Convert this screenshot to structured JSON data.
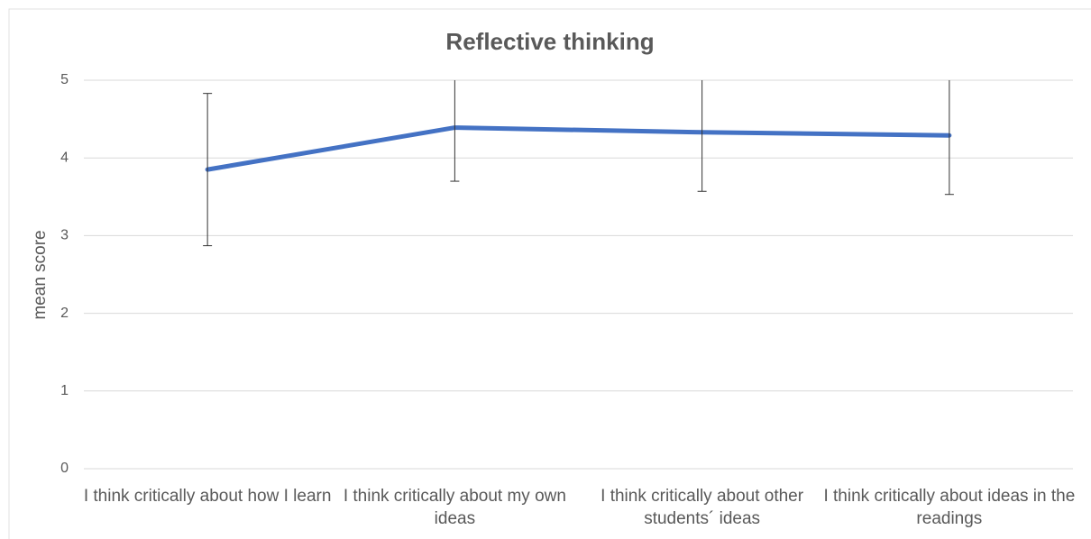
{
  "chart_data": {
    "type": "line",
    "title": "Reflective thinking",
    "y_label": "mean score",
    "categories": [
      "I think critically about how I learn",
      "I think critically about my own ideas",
      "I think critically about other students´ ideas",
      "I think critically about ideas in the readings"
    ],
    "series": [
      {
        "name": "mean score",
        "color": "#4472c4",
        "values": [
          3.85,
          4.39,
          4.33,
          4.29
        ],
        "errors": [
          0.98,
          0.69,
          0.76,
          0.76
        ]
      }
    ],
    "ylim": [
      0,
      5
    ],
    "yticks": [
      0,
      1,
      2,
      3,
      4,
      5
    ],
    "grid": true
  }
}
